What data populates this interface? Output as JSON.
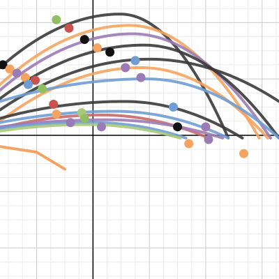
{
  "chart_data": {
    "type": "scatter",
    "title": "",
    "xlabel": "",
    "ylabel": "",
    "grid": true,
    "xlim": [
      -3.3,
      6.6
    ],
    "ylim": [
      -5.1,
      4.8
    ],
    "axis_color": "#000000",
    "grid_color": "#cccccc",
    "minor_grid_color": "#ececec",
    "curves": [
      {
        "color": "#3a3a3a",
        "vertex": [
          0.97,
          4.3
        ],
        "points": [
          [
            -3.3,
            2.4
          ],
          [
            4.8,
            -0.1
          ]
        ]
      },
      {
        "color": "#f4a460",
        "vertex": [
          1.3,
          3.9
        ],
        "points": [
          [
            -3.3,
            1.8
          ],
          [
            5.9,
            -0.1
          ]
        ]
      },
      {
        "color": "#9b7bb5",
        "vertex": [
          1.4,
          3.6
        ],
        "points": [
          [
            -3.3,
            1.6
          ],
          [
            6.3,
            -0.1
          ]
        ]
      },
      {
        "color": "#3a3a3a",
        "vertex": [
          1.8,
          3.2
        ],
        "points": [
          [
            -3.3,
            1.3
          ],
          [
            6.6,
            -0.1
          ]
        ]
      },
      {
        "color": "#3a3a3a",
        "vertex": [
          2.0,
          2.7
        ],
        "points": [
          [
            -3.3,
            0.9
          ],
          [
            6.6,
            1.2
          ]
        ]
      },
      {
        "color": "#f4a460",
        "vertex": [
          1.7,
          2.4
        ],
        "points": [
          [
            -3.3,
            0.5
          ],
          [
            6.2,
            -0.1
          ]
        ]
      },
      {
        "color": "#6f9dd4",
        "vertex": [
          1.9,
          2.0
        ],
        "points": [
          [
            -3.3,
            1.2
          ],
          [
            6.6,
            -0.1
          ]
        ]
      },
      {
        "color": "#3a3a3a",
        "vertex": [
          1.1,
          1.2
        ],
        "points": [
          [
            -3.3,
            0.6
          ],
          [
            5.3,
            -0.1
          ]
        ]
      },
      {
        "color": "#6f9dd4",
        "vertex": [
          0.8,
          0.85
        ],
        "points": [
          [
            -3.3,
            0.45
          ],
          [
            4.8,
            -0.1
          ]
        ]
      },
      {
        "color": "#c96a6a",
        "vertex": [
          0.3,
          0.72
        ],
        "points": [
          [
            -3.3,
            0.25
          ],
          [
            4.1,
            -0.1
          ]
        ]
      },
      {
        "color": "#9b7bb5",
        "vertex": [
          0.5,
          0.55
        ],
        "points": [
          [
            -3.3,
            0.3
          ],
          [
            4.6,
            -0.1
          ]
        ]
      },
      {
        "color": "#6f9dd4",
        "vertex": [
          0.0,
          0.45
        ],
        "points": [
          [
            -3.3,
            0.25
          ],
          [
            3.3,
            -0.1
          ]
        ]
      },
      {
        "color": "#a8c97a",
        "vertex": [
          -0.2,
          0.38
        ],
        "points": [
          [
            -3.3,
            0.15
          ],
          [
            3.1,
            -0.1
          ]
        ]
      }
    ],
    "tail_curve": {
      "color": "#f4a460",
      "points": [
        [
          -3.3,
          -0.4
        ],
        [
          -2.0,
          -0.6
        ],
        [
          -1.0,
          -1.2
        ]
      ]
    },
    "points": [
      {
        "x": -1.3,
        "y": 4.1,
        "color": "#8fbf62"
      },
      {
        "x": -0.85,
        "y": 3.8,
        "color": "#c9524f"
      },
      {
        "x": -0.3,
        "y": 3.4,
        "color": "#111111"
      },
      {
        "x": 0.15,
        "y": 3.1,
        "color": "#f4a460"
      },
      {
        "x": 0.6,
        "y": 2.95,
        "color": "#111111"
      },
      {
        "x": 1.5,
        "y": 2.65,
        "color": "#6f9dd4"
      },
      {
        "x": 1.15,
        "y": 2.4,
        "color": "#9b7bb5"
      },
      {
        "x": 1.7,
        "y": 2.05,
        "color": "#9b7bb5"
      },
      {
        "x": -3.2,
        "y": 2.5,
        "color": "#111111"
      },
      {
        "x": -2.95,
        "y": 2.35,
        "color": "#f4a460"
      },
      {
        "x": -2.7,
        "y": 2.2,
        "color": "#9b7bb5"
      },
      {
        "x": -2.4,
        "y": 2.05,
        "color": "#f4a460"
      },
      {
        "x": -2.05,
        "y": 1.95,
        "color": "#c9524f"
      },
      {
        "x": -2.3,
        "y": 1.8,
        "color": "#6f9dd4"
      },
      {
        "x": -1.8,
        "y": 1.65,
        "color": "#8fbf62"
      },
      {
        "x": -1.4,
        "y": 1.1,
        "color": "#c9524f"
      },
      {
        "x": -1.3,
        "y": 0.75,
        "color": "#f4a460"
      },
      {
        "x": -0.4,
        "y": 0.8,
        "color": "#a8c97a"
      },
      {
        "x": -0.3,
        "y": 0.6,
        "color": "#8fbf62"
      },
      {
        "x": -0.8,
        "y": 0.45,
        "color": "#9b7bb5"
      },
      {
        "x": 0.3,
        "y": 0.3,
        "color": "#9b7bb5"
      },
      {
        "x": 2.85,
        "y": 1.0,
        "color": "#6f9dd4"
      },
      {
        "x": 3.0,
        "y": 0.3,
        "color": "#111111"
      },
      {
        "x": 4.0,
        "y": 0.3,
        "color": "#9b7bb5"
      },
      {
        "x": 3.4,
        "y": -0.3,
        "color": "#f4a460"
      },
      {
        "x": 4.1,
        "y": -0.15,
        "color": "#9b7bb5"
      },
      {
        "x": 5.35,
        "y": -0.65,
        "color": "#f4a460"
      }
    ]
  }
}
